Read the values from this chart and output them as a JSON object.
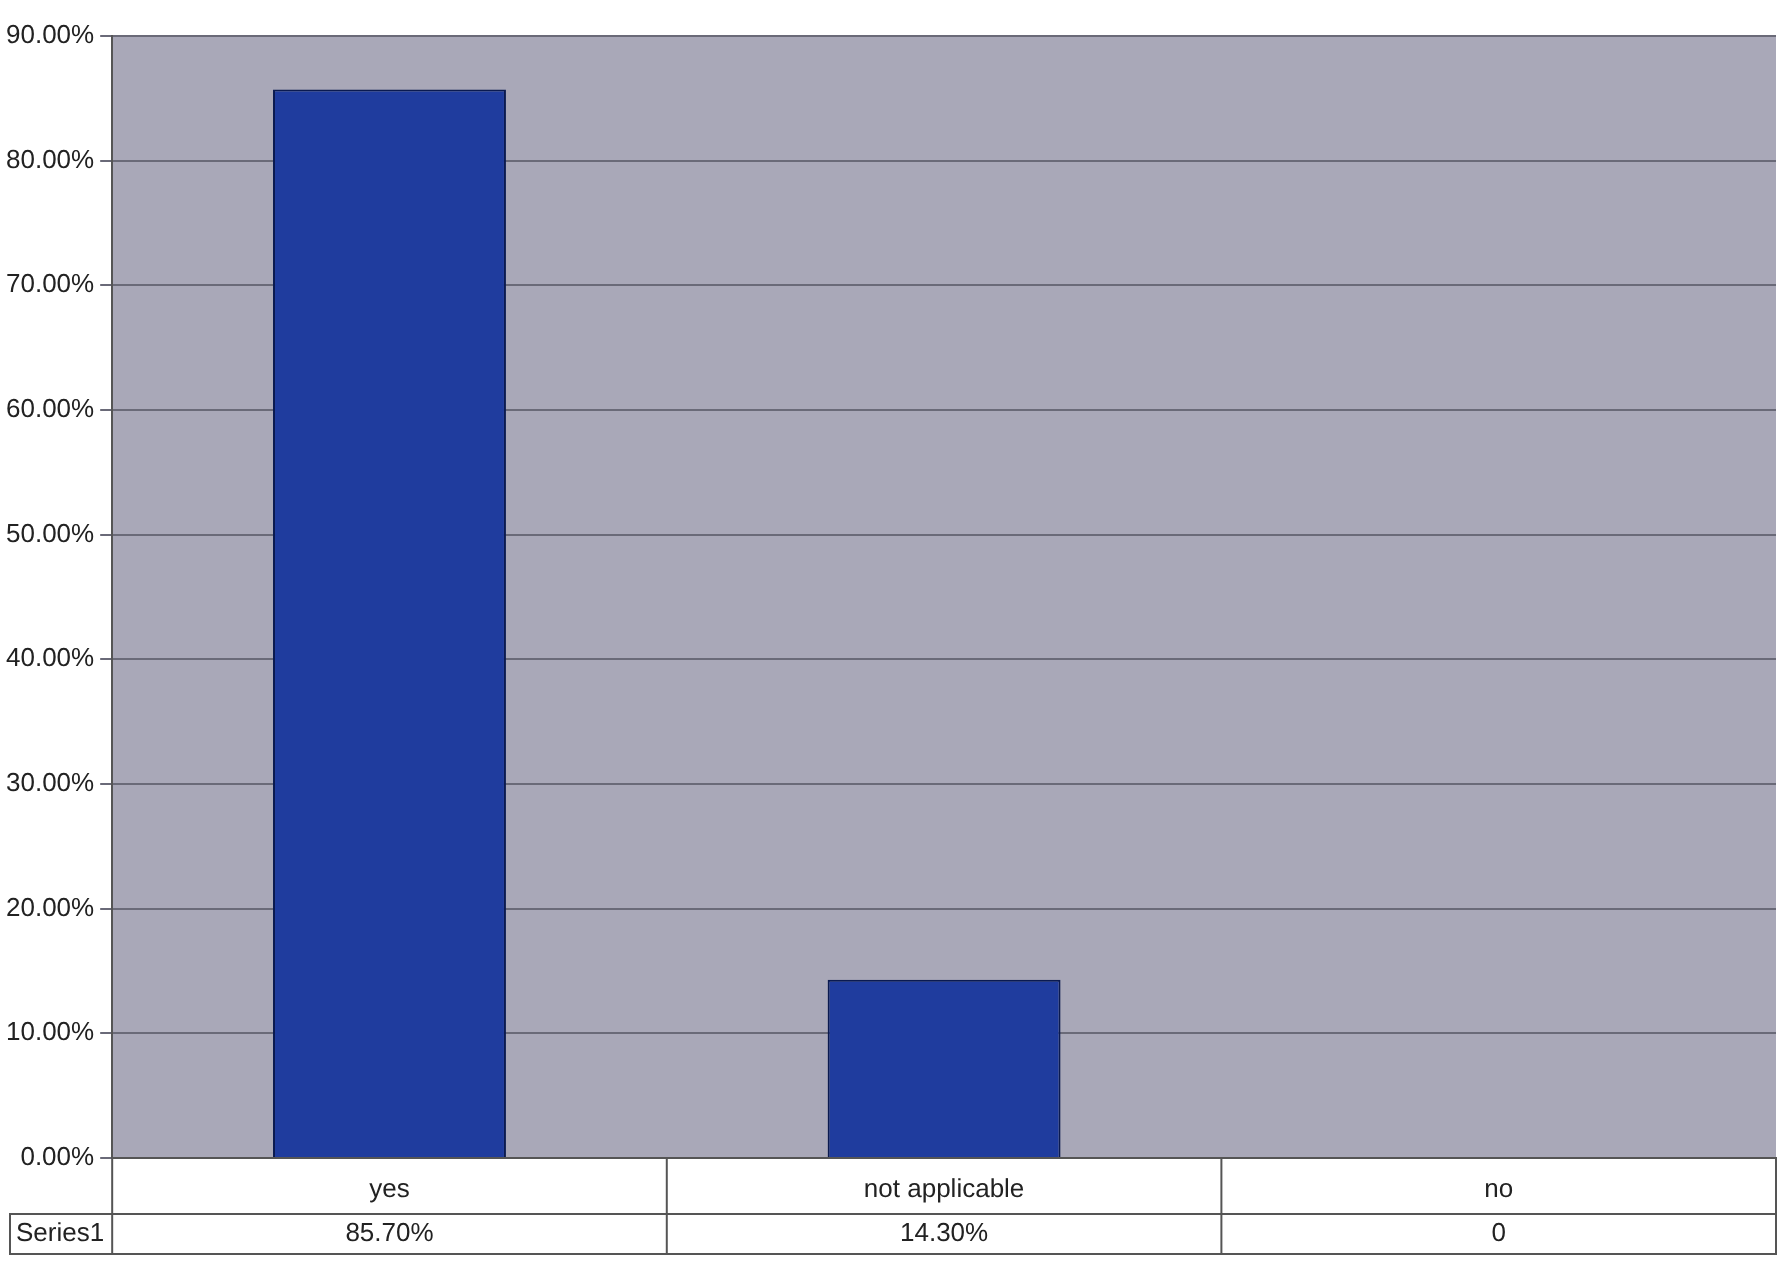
{
  "chart_data": {
    "type": "bar",
    "categories": [
      "yes",
      "not applicable",
      "no"
    ],
    "series": [
      {
        "name": "Series1",
        "color": "#1f3c9e",
        "values": [
          85.7,
          14.3,
          0
        ],
        "value_labels": [
          "85.70%",
          "14.30%",
          "0"
        ]
      }
    ],
    "ylim": [
      0,
      90
    ],
    "yticks": [
      {
        "value": 0,
        "label": "0.00%"
      },
      {
        "value": 10,
        "label": "10.00%"
      },
      {
        "value": 20,
        "label": "20.00%"
      },
      {
        "value": 30,
        "label": "30.00%"
      },
      {
        "value": 40,
        "label": "40.00%"
      },
      {
        "value": 50,
        "label": "50.00%"
      },
      {
        "value": 60,
        "label": "60.00%"
      },
      {
        "value": 70,
        "label": "70.00%"
      },
      {
        "value": 80,
        "label": "80.00%"
      },
      {
        "value": 90,
        "label": "90.00%"
      }
    ],
    "grid": "y",
    "legend": false
  }
}
